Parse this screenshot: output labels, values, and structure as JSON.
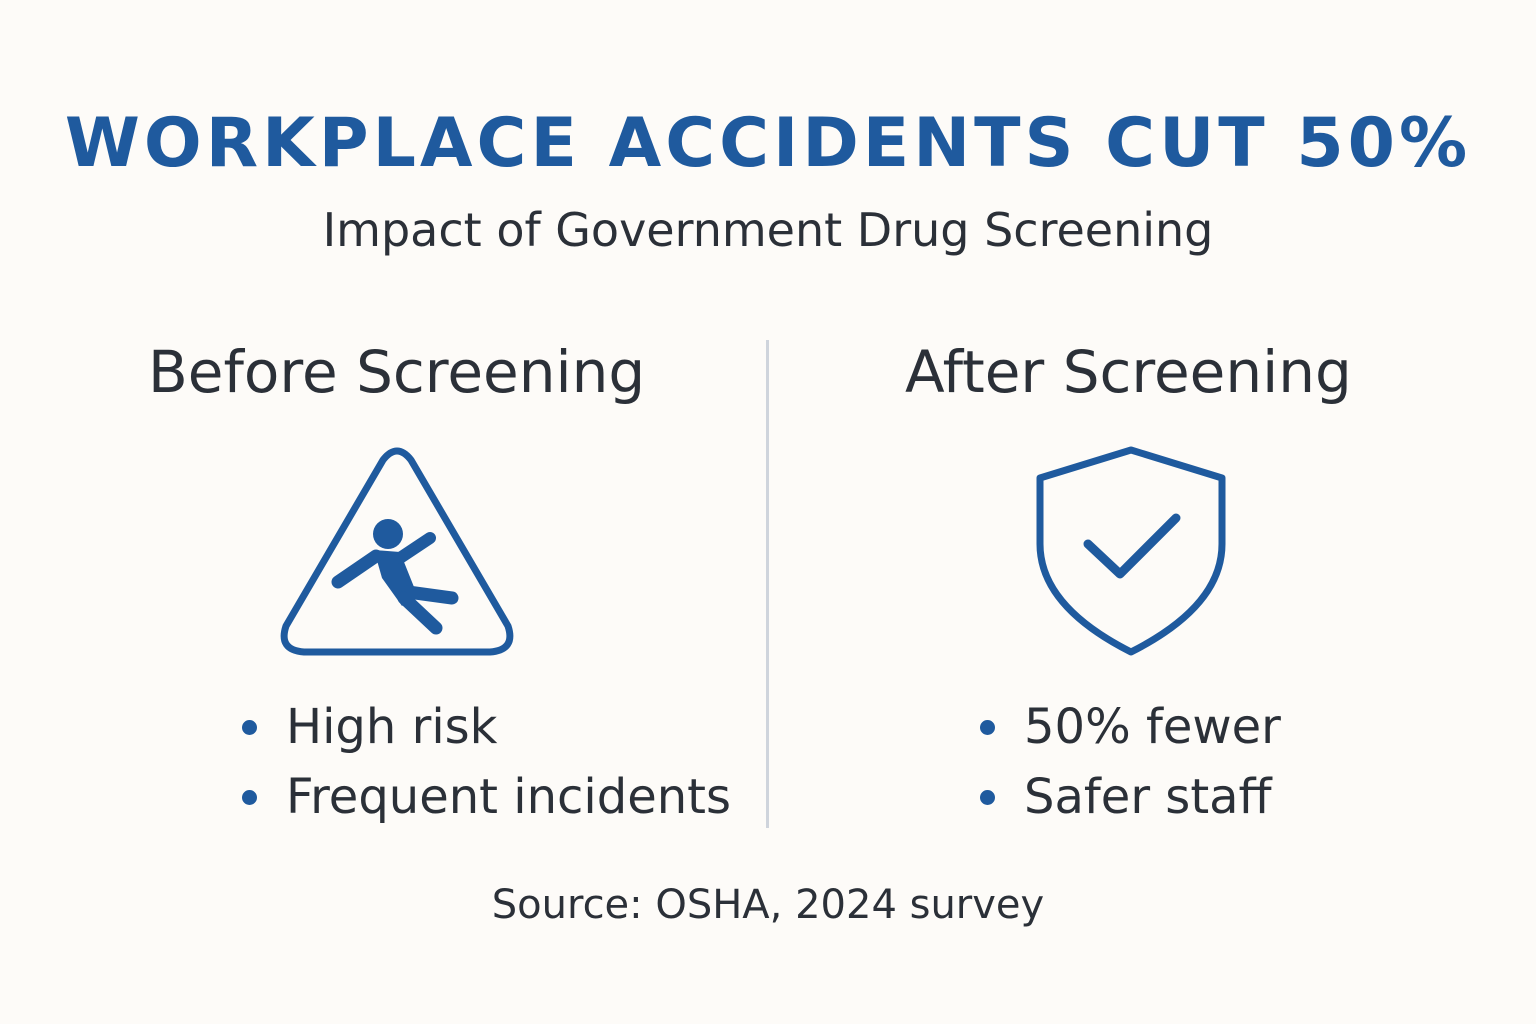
{
  "header": {
    "title": "WORKPLACE ACCIDENTS CUT 50%",
    "subtitle": "Impact of Government Drug Screening"
  },
  "before": {
    "heading": "Before Screening",
    "icon": "slip-warning-icon",
    "bullets": [
      "High risk",
      "Frequent incidents"
    ]
  },
  "after": {
    "heading": "After Screening",
    "icon": "shield-check-icon",
    "bullets": [
      "50% fewer",
      "Safer staff"
    ]
  },
  "footer": {
    "source": "Source: OSHA, 2024 survey"
  },
  "colors": {
    "accent": "#1f5a9e",
    "text": "#2b3038",
    "background": "#fdfbf8",
    "divider": "#cfd4dc"
  }
}
